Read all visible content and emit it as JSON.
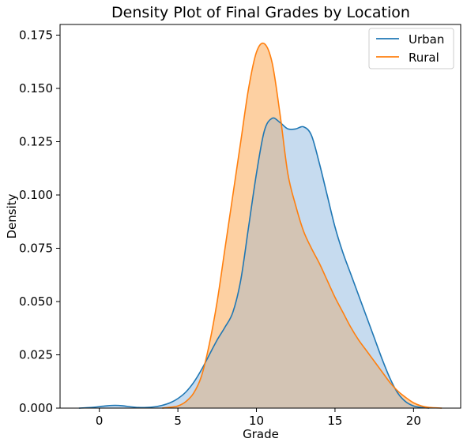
{
  "chart_data": {
    "type": "area",
    "title": "Density Plot of Final Grades by Location",
    "xlabel": "Grade",
    "ylabel": "Density",
    "xlim": [
      -2.5,
      23.0
    ],
    "ylim": [
      0,
      0.18
    ],
    "xticks": [
      0,
      5,
      10,
      15,
      20
    ],
    "xtick_labels": [
      "0",
      "5",
      "10",
      "15",
      "20"
    ],
    "yticks": [
      0.0,
      0.025,
      0.05,
      0.075,
      0.1,
      0.125,
      0.15,
      0.175
    ],
    "ytick_labels": [
      "0.000",
      "0.025",
      "0.050",
      "0.075",
      "0.100",
      "0.125",
      "0.150",
      "0.175"
    ],
    "grid": false,
    "legend_position": "top-right",
    "series": [
      {
        "name": "Urban",
        "color": "#1f77b4",
        "fill_color": "#c6dbef",
        "x": [
          -1.3,
          -0.5,
          0.0,
          0.5,
          1.0,
          1.5,
          2.0,
          2.5,
          3.0,
          3.5,
          4.0,
          4.5,
          5.0,
          5.5,
          6.0,
          6.5,
          7.0,
          7.5,
          8.0,
          8.5,
          9.0,
          9.5,
          10.0,
          10.5,
          11.0,
          11.5,
          12.0,
          12.5,
          13.0,
          13.5,
          14.0,
          14.5,
          15.0,
          15.5,
          16.0,
          16.5,
          17.0,
          17.5,
          18.0,
          18.5,
          19.0,
          19.5,
          20.0,
          20.5,
          21.0
        ],
        "y": [
          0.0,
          0.0003,
          0.0007,
          0.0011,
          0.0013,
          0.0011,
          0.0006,
          0.0003,
          0.0003,
          0.0006,
          0.0013,
          0.0025,
          0.0045,
          0.0075,
          0.012,
          0.018,
          0.025,
          0.032,
          0.038,
          0.045,
          0.06,
          0.085,
          0.11,
          0.13,
          0.136,
          0.134,
          0.131,
          0.131,
          0.132,
          0.128,
          0.115,
          0.1,
          0.085,
          0.073,
          0.063,
          0.053,
          0.043,
          0.033,
          0.023,
          0.014,
          0.007,
          0.003,
          0.001,
          0.0003,
          0.0
        ]
      },
      {
        "name": "Rural",
        "color": "#ff7f0e",
        "fill_color": "#fdd0a2",
        "x": [
          4.0,
          4.5,
          5.0,
          5.5,
          6.0,
          6.5,
          7.0,
          7.5,
          8.0,
          8.5,
          9.0,
          9.5,
          10.0,
          10.5,
          11.0,
          11.5,
          12.0,
          12.5,
          13.0,
          13.5,
          14.0,
          14.5,
          15.0,
          15.5,
          16.0,
          16.5,
          17.0,
          17.5,
          18.0,
          18.5,
          19.0,
          19.5,
          20.0,
          20.5,
          21.0,
          21.8
        ],
        "y": [
          0.0,
          0.0004,
          0.001,
          0.003,
          0.007,
          0.015,
          0.03,
          0.05,
          0.075,
          0.1,
          0.125,
          0.15,
          0.167,
          0.171,
          0.162,
          0.138,
          0.11,
          0.095,
          0.083,
          0.075,
          0.068,
          0.06,
          0.052,
          0.045,
          0.038,
          0.032,
          0.027,
          0.022,
          0.017,
          0.012,
          0.008,
          0.005,
          0.0025,
          0.001,
          0.0003,
          0.0
        ]
      }
    ],
    "overlap_color": "#d3c4b4"
  }
}
